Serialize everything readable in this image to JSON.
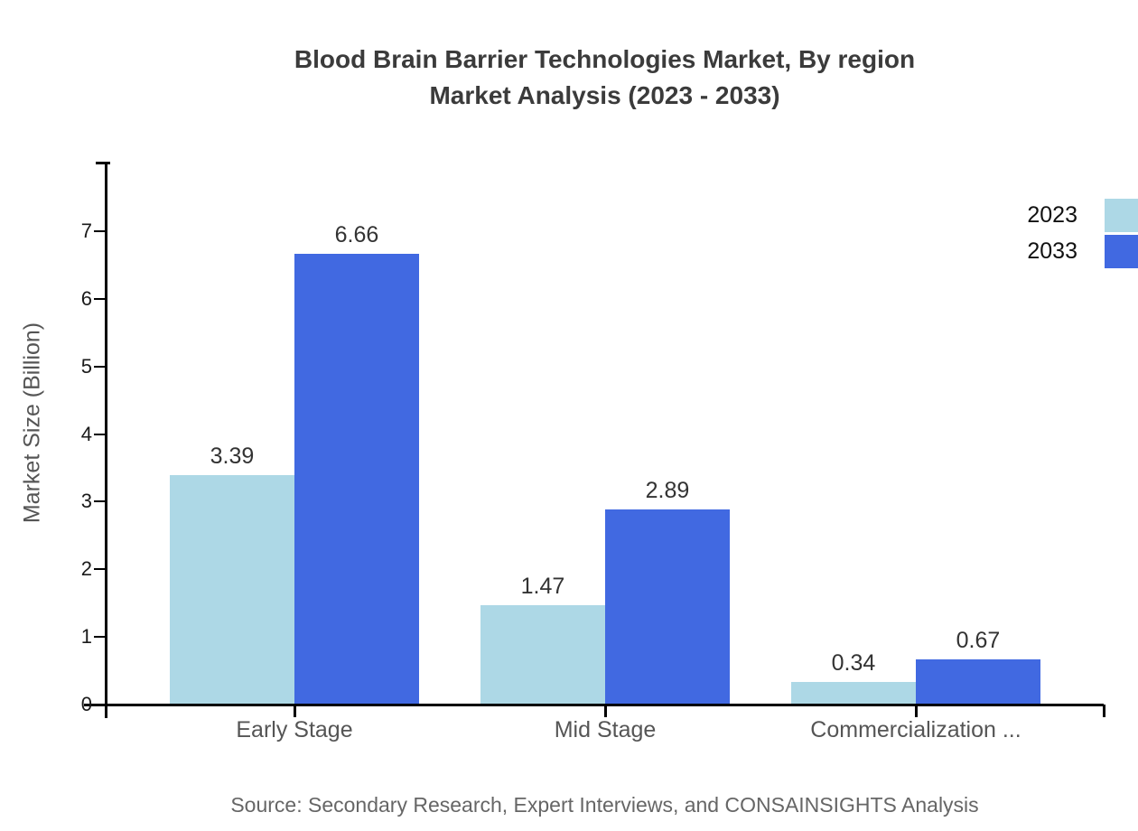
{
  "title": {
    "line1": "Blood Brain Barrier Technologies Market, By region",
    "line2": "Market Analysis (2023 - 2033)"
  },
  "source_note": "Source: Secondary Research, Expert Interviews, and CONSAINSIGHTS Analysis",
  "chart_data": {
    "type": "bar",
    "title": "Blood Brain Barrier Technologies Market, By region Market Analysis (2023 - 2033)",
    "categories": [
      "Early Stage",
      "Mid Stage",
      "Commercialization ..."
    ],
    "series": [
      {
        "name": "2023",
        "color": "#add8e6",
        "values": [
          3.39,
          1.47,
          0.34
        ]
      },
      {
        "name": "2033",
        "color": "#4169e1",
        "values": [
          6.66,
          2.89,
          0.67
        ]
      }
    ],
    "xlabel": "",
    "ylabel": "Market Size (Billion)",
    "ylim": [
      0,
      7.5
    ],
    "y_ticks": [
      0,
      1,
      2,
      3,
      4,
      5,
      6,
      7
    ],
    "value_labels": true,
    "grid": false,
    "legend_position": "top-right",
    "colors": {
      "axis": "#000000",
      "title_text": "#3b3b3b",
      "tick_text": "#1a1a1a",
      "value_label_text": "#333333",
      "category_text": "#555555",
      "ylabel_text": "#555555",
      "source_text": "#666666"
    }
  }
}
